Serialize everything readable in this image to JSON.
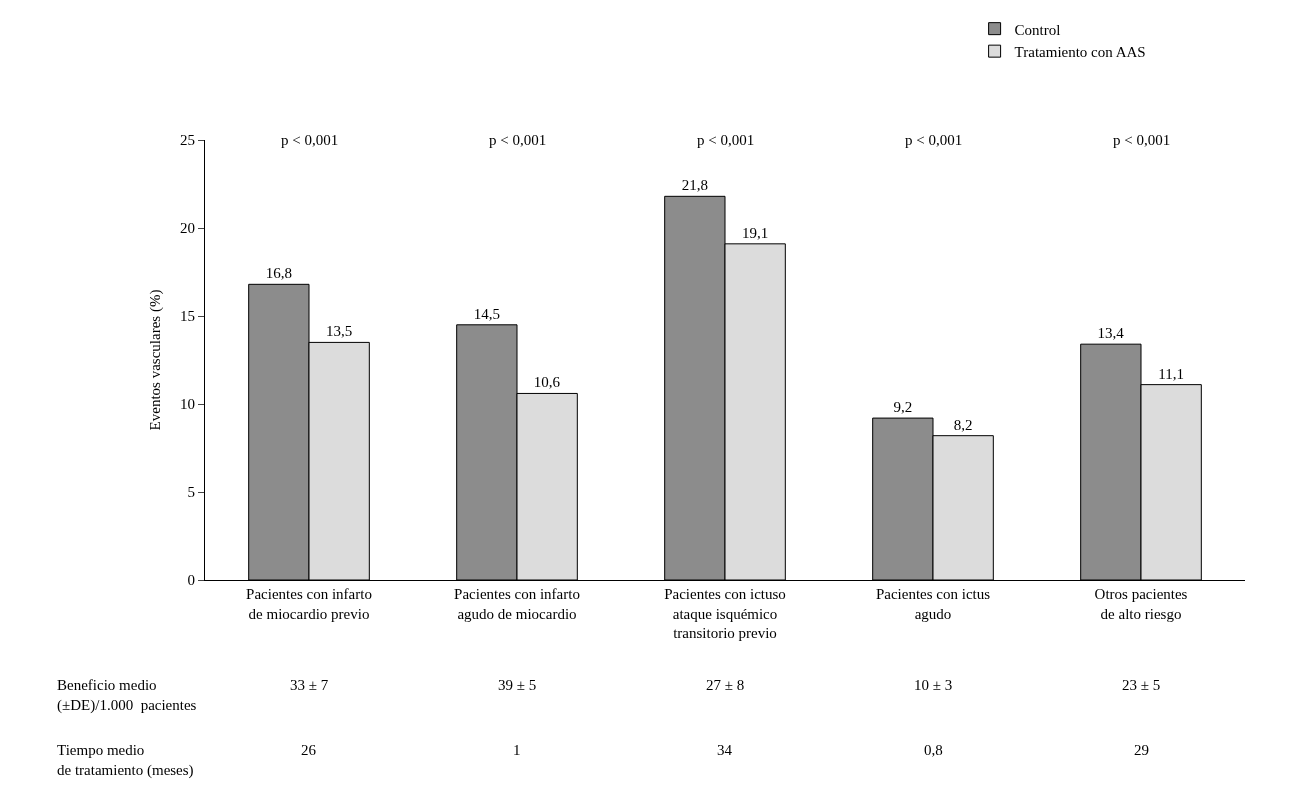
{
  "chart_data": {
    "type": "bar",
    "ylabel": "Eventos vasculares (%)",
    "categories": [
      "Pacientes con infarto\nde miocardio previo",
      "Pacientes con infarto\nagudo de miocardio",
      "Pacientes con ictuso\nataque isquémico\ntransitorio previo",
      "Pacientes con ictus\nagudo",
      "Otros pacientes\nde alto riesgo"
    ],
    "series": [
      {
        "name": "Control",
        "color": "#8c8c8c",
        "values": [
          16.8,
          14.5,
          21.8,
          9.2,
          13.4
        ],
        "value_labels": [
          "16,8",
          "14,5",
          "21,8",
          "9,2",
          "13,4"
        ]
      },
      {
        "name": "Tratamiento con AAS",
        "color": "#dcdcdc",
        "values": [
          13.5,
          10.6,
          19.1,
          8.2,
          11.1
        ],
        "value_labels": [
          "13,5",
          "10,6",
          "19,1",
          "8,2",
          "11,1"
        ]
      }
    ],
    "ylim": [
      0,
      25
    ],
    "yticks": [
      0,
      5,
      10,
      15,
      20,
      25
    ],
    "legend": "top right",
    "annotations": [
      "p < 0,001",
      "p < 0,001",
      "p < 0,001",
      "p < 0,001",
      "p < 0,001",
      "Beneficio medio\n(±DE)/1.000  pacientes",
      "33 ± 7",
      "39 ± 5",
      "27 ± 8",
      "10 ± 3",
      "23 ± 5",
      "Tiempo medio\nde tratamiento (meses)",
      "26",
      "1",
      "34",
      "0,8",
      "29"
    ]
  }
}
